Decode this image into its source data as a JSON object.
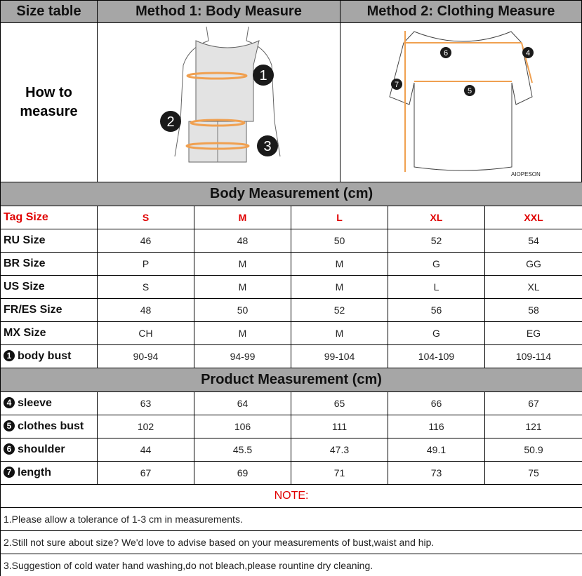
{
  "header": {
    "size_table": "Size table",
    "method1": "Method 1: Body  Measure",
    "method2": "Method 2: Clothing Measure"
  },
  "how_to": {
    "line1": "How to",
    "line2": "measure"
  },
  "illustration": {
    "body_markers": [
      "1",
      "2",
      "3"
    ],
    "shirt_markers": [
      "6",
      "4",
      "7",
      "5"
    ],
    "brand": "AIOPESON",
    "accent": "#f0a050"
  },
  "body_section": "Body Measurement (cm)",
  "product_section": "Product Measurement (cm)",
  "tag_row": {
    "label": "Tag Size",
    "values": [
      "S",
      "M",
      "L",
      "XL",
      "XXL"
    ]
  },
  "body_rows": [
    {
      "label": "RU Size",
      "values": [
        "46",
        "48",
        "50",
        "52",
        "54"
      ]
    },
    {
      "label": "BR Size",
      "values": [
        "P",
        "M",
        "M",
        "G",
        "GG"
      ]
    },
    {
      "label": "US Size",
      "values": [
        "S",
        "M",
        "M",
        "L",
        "XL"
      ]
    },
    {
      "label": "FR/ES Size",
      "values": [
        "48",
        "50",
        "52",
        "56",
        "58"
      ]
    },
    {
      "label": "MX Size",
      "values": [
        "CH",
        "M",
        "M",
        "G",
        "EG"
      ]
    },
    {
      "num": "1",
      "label": "body bust",
      "values": [
        "90-94",
        "94-99",
        "99-104",
        "104-109",
        "109-114"
      ]
    }
  ],
  "product_rows": [
    {
      "num": "4",
      "label": "sleeve",
      "values": [
        "63",
        "64",
        "65",
        "66",
        "67"
      ]
    },
    {
      "num": "5",
      "label": "clothes bust",
      "values": [
        "102",
        "106",
        "111",
        "116",
        "121"
      ]
    },
    {
      "num": "6",
      "label": "shoulder",
      "values": [
        "44",
        "45.5",
        "47.3",
        "49.1",
        "50.9"
      ]
    },
    {
      "num": "7",
      "label": "length",
      "values": [
        "67",
        "69",
        "71",
        "73",
        "75"
      ]
    }
  ],
  "note": {
    "title": "NOTE:",
    "lines": [
      "1.Please allow a tolerance of 1-3 cm in measurements.",
      "2.Still not sure about size? We'd love to advise based on your measurements of bust,waist and hip.",
      "3.Suggestion of cold water hand washing,do not bleach,please rountine dry cleaning."
    ]
  }
}
